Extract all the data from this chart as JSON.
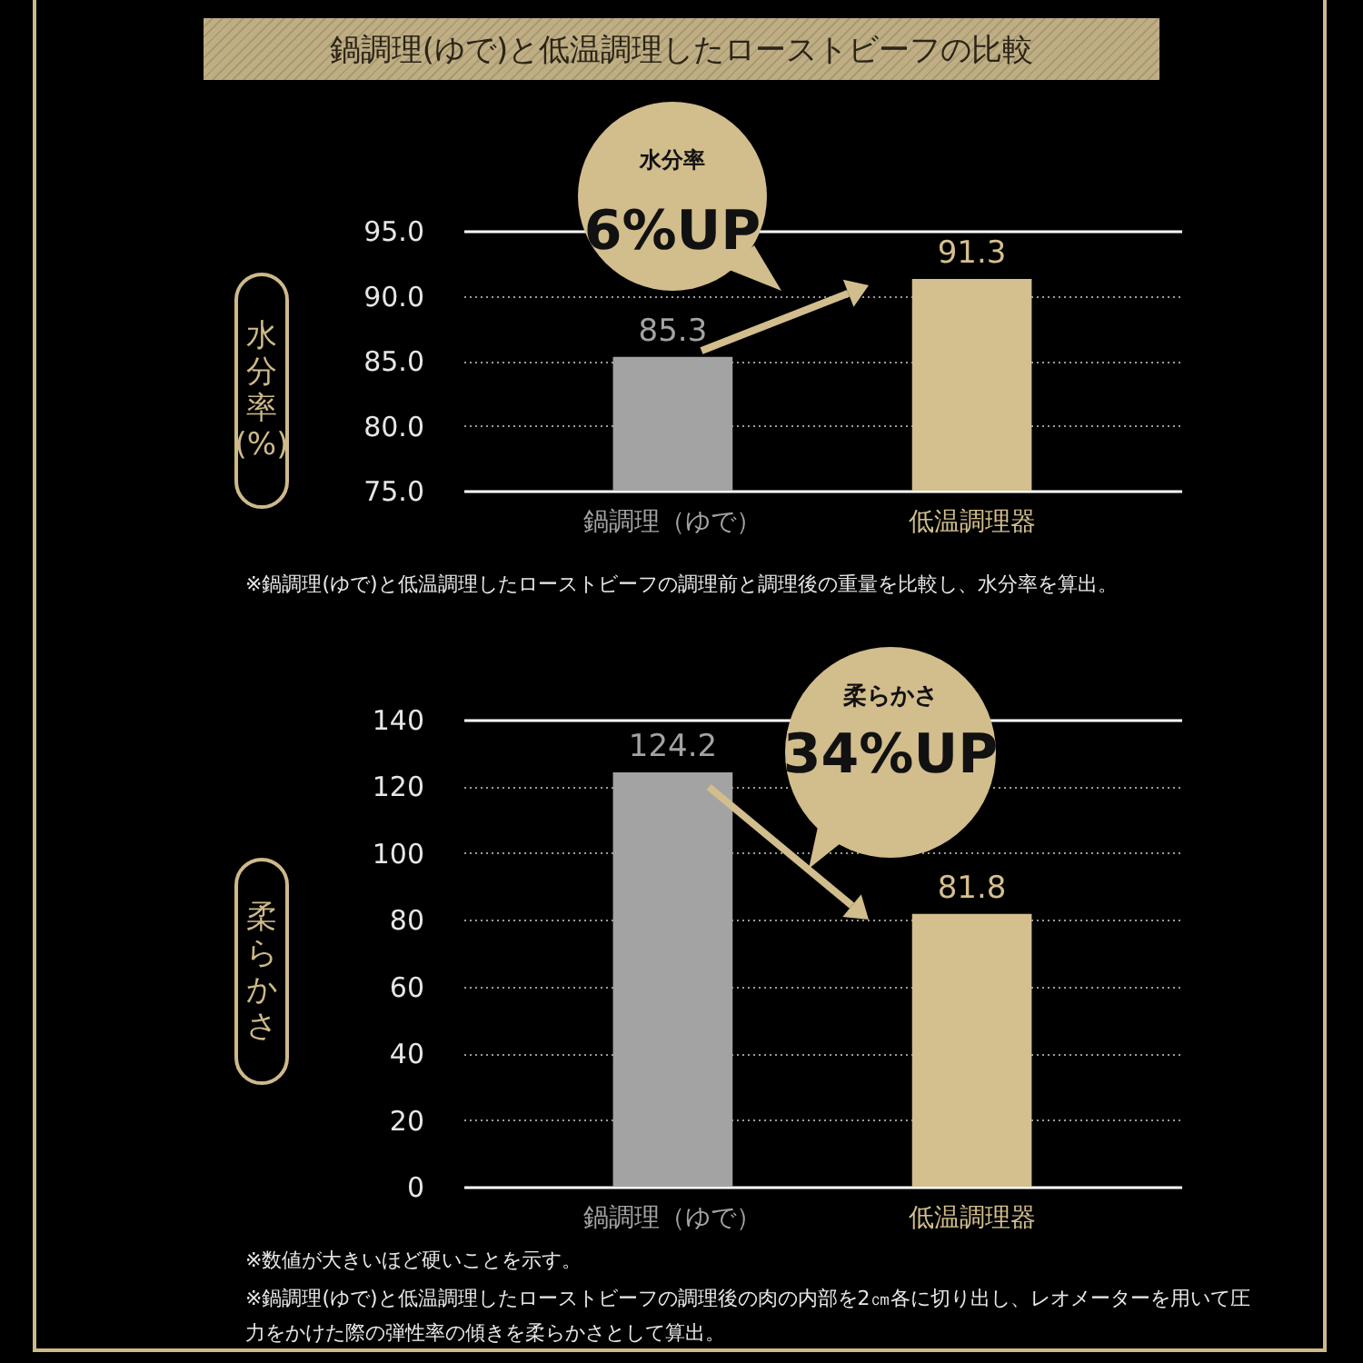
{
  "chart_data": [
    {
      "type": "bar",
      "title": "鍋調理(ゆで)と低温調理したローストビーフの比較",
      "ylabel": "水分率(%)",
      "categories": [
        "鍋調理（ゆで）",
        "低温調理器"
      ],
      "values": [
        85.3,
        91.3
      ],
      "colors": [
        "#a3a3a3",
        "#d4bf8e"
      ],
      "ylim": [
        75,
        95
      ],
      "yticks": [
        {
          "value": 75,
          "label": "75.0"
        },
        {
          "value": 80,
          "label": "80.0"
        },
        {
          "value": 85,
          "label": "85.0"
        },
        {
          "value": 90,
          "label": "90.0"
        },
        {
          "value": 95,
          "label": "95.0"
        }
      ],
      "grid": "y",
      "data_labels": true,
      "annotations": [
        "水分率",
        "6%UP",
        "※鍋調理(ゆで)と低温調理したローストビーフの調理前と調理後の重量を比較し、水分率を算出。"
      ]
    },
    {
      "type": "bar",
      "ylabel": "柔らかさ",
      "categories": [
        "鍋調理（ゆで）",
        "低温調理器"
      ],
      "values": [
        124.2,
        81.8
      ],
      "colors": [
        "#a3a3a3",
        "#d4bf8e"
      ],
      "ylim": [
        0,
        140
      ],
      "yticks": [
        0,
        20,
        40,
        60,
        80,
        100,
        120,
        140
      ],
      "grid": "y",
      "data_labels": true,
      "annotations": [
        "柔らかさ",
        "34%UP",
        "※数値が大きいほど硬いことを示す。",
        "※鍋調理(ゆで)と低温調理したローストビーフの調理後の肉の内部を2㎝各に切り出し、レオメーターを用いて圧力をかけた際の弾性率の傾きを柔らかさとして算出。"
      ]
    }
  ]
}
